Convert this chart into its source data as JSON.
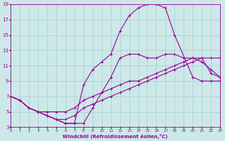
{
  "xlabel": "Windchill (Refroidissement éolien,°C)",
  "xlim": [
    0,
    23
  ],
  "ylim": [
    3,
    19
  ],
  "xticks": [
    0,
    1,
    2,
    3,
    4,
    5,
    6,
    7,
    8,
    9,
    10,
    11,
    12,
    13,
    14,
    15,
    16,
    17,
    18,
    19,
    20,
    21,
    22,
    23
  ],
  "yticks": [
    3,
    5,
    7,
    9,
    11,
    13,
    15,
    17,
    19
  ],
  "bg_color": "#cce8e8",
  "line_color": "#990099",
  "grid_color": "#aacccc",
  "line1_x": [
    0,
    1,
    2,
    3,
    4,
    5,
    6,
    7,
    8,
    9,
    10,
    11,
    12,
    13,
    14,
    15,
    16,
    17,
    18,
    20,
    21,
    22,
    23
  ],
  "line1_y": [
    7,
    6.5,
    5.5,
    5.0,
    4.5,
    4.0,
    3.5,
    3.5,
    8.5,
    10.5,
    11.5,
    12.5,
    15.5,
    17.5,
    18.5,
    19.0,
    19.0,
    18.5,
    15.0,
    9.5,
    9.0,
    9.0,
    9.0
  ],
  "line2_x": [
    0,
    1,
    2,
    3,
    4,
    5,
    6,
    7,
    8,
    9,
    10,
    11,
    12,
    13,
    14,
    15,
    16,
    17,
    18,
    19,
    20,
    21,
    22,
    23
  ],
  "line2_y": [
    7.0,
    6.5,
    5.5,
    5.0,
    5.0,
    5.0,
    5.0,
    5.5,
    6.5,
    7.0,
    7.5,
    8.0,
    8.5,
    9.0,
    9.0,
    9.5,
    10.0,
    10.5,
    11.0,
    11.5,
    12.0,
    12.0,
    10.0,
    9.5
  ],
  "line3_x": [
    0,
    1,
    2,
    3,
    4,
    5,
    6,
    7,
    8,
    9,
    10,
    11,
    12,
    13,
    14,
    15,
    16,
    17,
    18,
    19,
    20,
    21,
    22,
    23
  ],
  "line3_y": [
    7.0,
    6.5,
    5.5,
    5.0,
    4.5,
    4.0,
    4.0,
    4.5,
    5.5,
    6.0,
    6.5,
    7.0,
    7.5,
    8.0,
    8.5,
    9.0,
    9.5,
    10.0,
    10.5,
    11.0,
    11.5,
    12.0,
    12.0,
    12.0
  ],
  "line4_x": [
    0,
    1,
    2,
    3,
    4,
    5,
    6,
    7,
    8,
    9,
    10,
    11,
    12,
    13,
    14,
    15,
    16,
    17,
    18,
    19,
    20,
    21,
    22,
    23
  ],
  "line4_y": [
    7.0,
    6.5,
    5.5,
    5.0,
    4.5,
    4.0,
    3.5,
    3.5,
    3.5,
    5.5,
    7.5,
    9.5,
    12.0,
    12.5,
    12.5,
    12.0,
    12.0,
    12.5,
    12.5,
    12.0,
    12.0,
    11.5,
    10.5,
    9.5
  ]
}
